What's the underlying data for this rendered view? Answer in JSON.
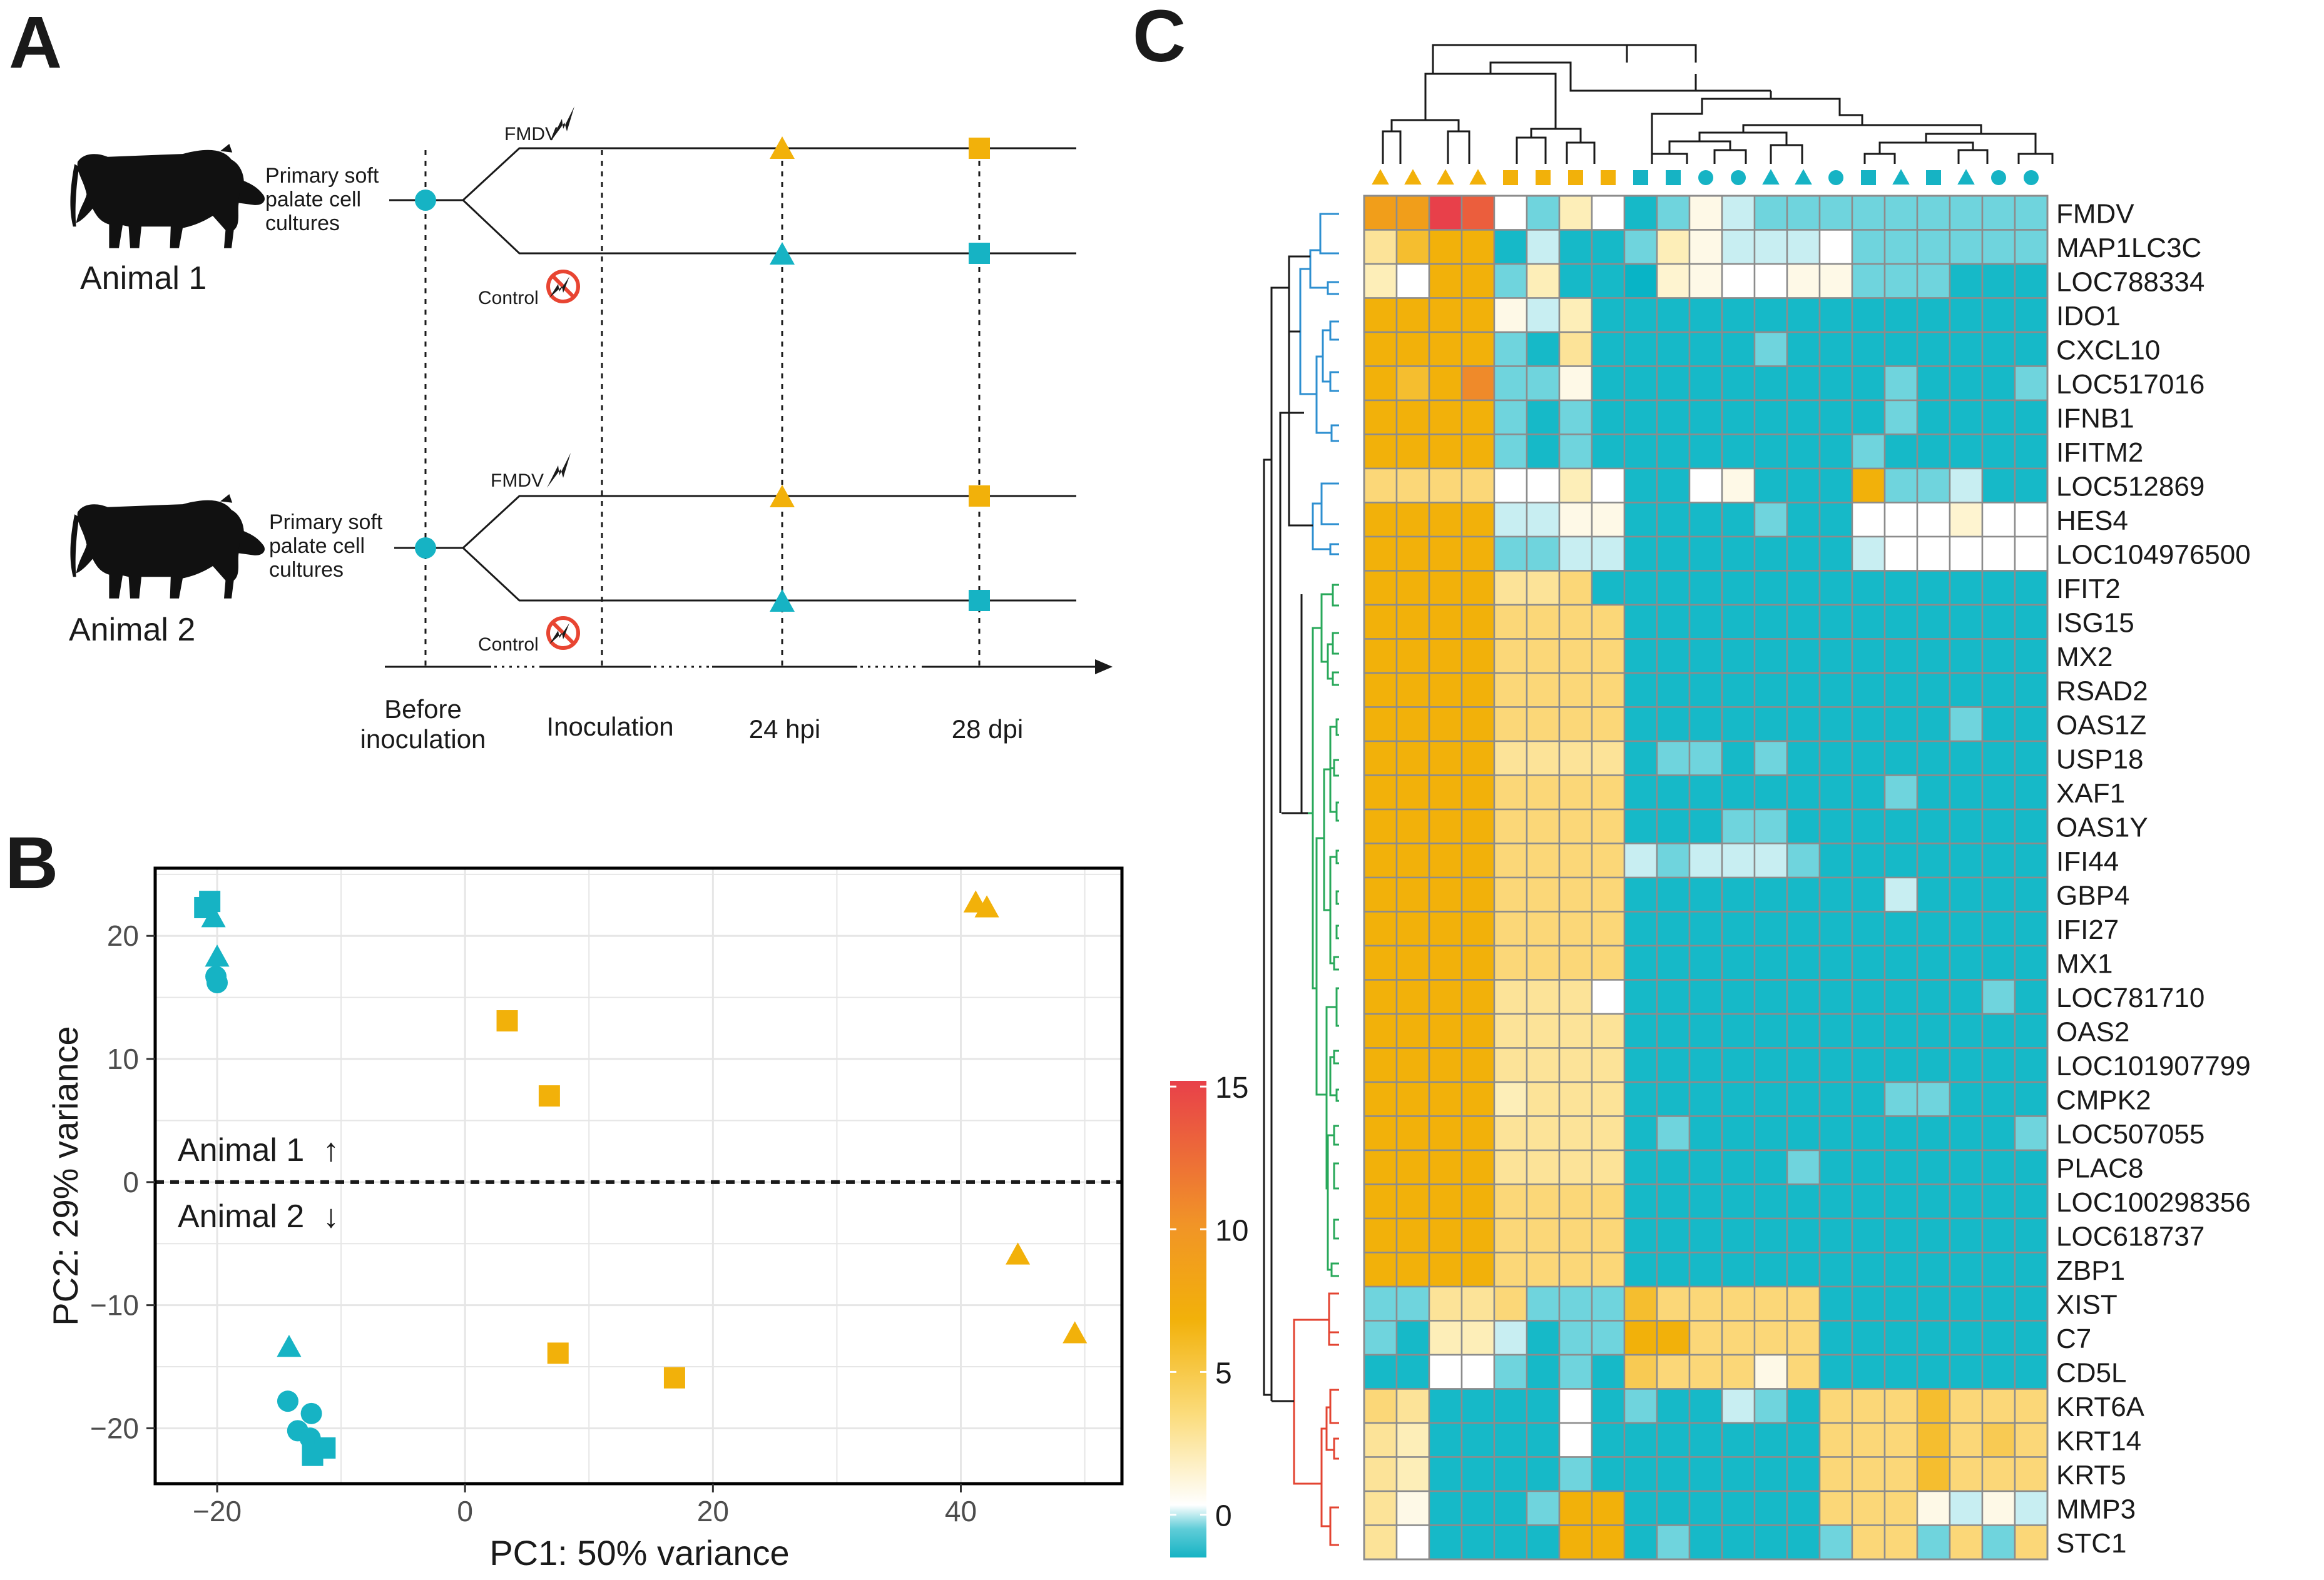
{
  "panels": {
    "a": "A",
    "b": "B",
    "c": "C"
  },
  "colors": {
    "teal": "#16b3c4",
    "orange": "#f2b10a",
    "red": "#e8404a",
    "heat_mid": "#fdf2cf",
    "grid": "#e6e6e6",
    "blue_dend": "#2d8fd0",
    "green_dend": "#28a85a",
    "red_dend": "#e34432"
  },
  "panel_a": {
    "animal1": "Animal 1",
    "animal2": "Animal 2",
    "culture_line1": "Primary soft",
    "culture_line2": "palate cell",
    "culture_line3": "cultures",
    "fmdv": "FMDV",
    "control": "Control",
    "timeline": [
      "Before",
      "inoculation",
      "Inoculation",
      "24 hpi",
      "28 dpi"
    ]
  },
  "panel_b": {
    "chart_data": {
      "type": "scatter",
      "xlabel": "PC1: 50% variance",
      "ylabel": "PC2: 29% variance",
      "xlim": [
        -25,
        53
      ],
      "ylim": [
        -24.5,
        25.5
      ],
      "xticks": [
        -20,
        0,
        20,
        40
      ],
      "yticks": [
        -20,
        -10,
        0,
        10,
        20
      ],
      "xtick_labels": [
        "−20",
        "0",
        "20",
        "40"
      ],
      "ytick_labels": [
        "−20",
        "−10",
        "0",
        "10",
        "20"
      ],
      "divider_y": 0,
      "animal1_label": "Animal 1",
      "animal2_label": "Animal 2",
      "up_arrow": "↑",
      "down_arrow": "↓",
      "points": [
        {
          "x": -21,
          "y": 22.3,
          "shape": "square",
          "group": "control"
        },
        {
          "x": -20.6,
          "y": 22.8,
          "shape": "square",
          "group": "control"
        },
        {
          "x": -20.3,
          "y": 21.5,
          "shape": "triangle",
          "group": "control"
        },
        {
          "x": -20,
          "y": 18.3,
          "shape": "triangle",
          "group": "control"
        },
        {
          "x": -20.1,
          "y": 16.7,
          "shape": "circle",
          "group": "control"
        },
        {
          "x": -20,
          "y": 16.2,
          "shape": "circle",
          "group": "control"
        },
        {
          "x": -14.2,
          "y": -13.4,
          "shape": "triangle",
          "group": "control"
        },
        {
          "x": -14.3,
          "y": -17.8,
          "shape": "circle",
          "group": "control"
        },
        {
          "x": -12.4,
          "y": -18.8,
          "shape": "circle",
          "group": "control"
        },
        {
          "x": -13.5,
          "y": -20.2,
          "shape": "circle",
          "group": "control"
        },
        {
          "x": -12.5,
          "y": -20.8,
          "shape": "circle",
          "group": "control"
        },
        {
          "x": -11.3,
          "y": -21.6,
          "shape": "square",
          "group": "control"
        },
        {
          "x": -12.3,
          "y": -22.2,
          "shape": "square",
          "group": "control"
        },
        {
          "x": 41.2,
          "y": 22.7,
          "shape": "triangle",
          "group": "fmdv"
        },
        {
          "x": 42.1,
          "y": 22.3,
          "shape": "triangle",
          "group": "fmdv"
        },
        {
          "x": 3.4,
          "y": 13.1,
          "shape": "square",
          "group": "fmdv"
        },
        {
          "x": 6.8,
          "y": 7,
          "shape": "square",
          "group": "fmdv"
        },
        {
          "x": 44.6,
          "y": -5.9,
          "shape": "triangle",
          "group": "fmdv"
        },
        {
          "x": 49.2,
          "y": -12.3,
          "shape": "triangle",
          "group": "fmdv"
        },
        {
          "x": 7.5,
          "y": -13.9,
          "shape": "square",
          "group": "fmdv"
        },
        {
          "x": 16.9,
          "y": -15.9,
          "shape": "square",
          "group": "fmdv"
        }
      ]
    }
  },
  "legend": {
    "ticks": [
      15,
      10,
      5,
      0
    ],
    "range": [
      -1.5,
      15.2
    ]
  },
  "panel_c": {
    "chart_data": {
      "type": "heatmap",
      "columns": [
        {
          "shape": "triangle",
          "group": "fmdv"
        },
        {
          "shape": "triangle",
          "group": "fmdv"
        },
        {
          "shape": "triangle",
          "group": "fmdv"
        },
        {
          "shape": "triangle",
          "group": "fmdv"
        },
        {
          "shape": "square",
          "group": "fmdv"
        },
        {
          "shape": "square",
          "group": "fmdv"
        },
        {
          "shape": "square",
          "group": "fmdv"
        },
        {
          "shape": "square",
          "group": "fmdv"
        },
        {
          "shape": "square",
          "group": "control"
        },
        {
          "shape": "square",
          "group": "control"
        },
        {
          "shape": "circle",
          "group": "control"
        },
        {
          "shape": "circle",
          "group": "control"
        },
        {
          "shape": "triangle",
          "group": "control"
        },
        {
          "shape": "triangle",
          "group": "control"
        },
        {
          "shape": "circle",
          "group": "control"
        },
        {
          "shape": "square",
          "group": "control"
        },
        {
          "shape": "triangle",
          "group": "control"
        },
        {
          "shape": "square",
          "group": "control"
        },
        {
          "shape": "triangle",
          "group": "control"
        },
        {
          "shape": "circle",
          "group": "control"
        },
        {
          "shape": "circle",
          "group": "control"
        }
      ],
      "genes": [
        "FMDV",
        "MAP1LC3C",
        "LOC788334",
        "IDO1",
        "CXCL10",
        "LOC517016",
        "IFNB1",
        "IFITM2",
        "LOC512869",
        "HES4",
        "LOC104976500",
        "IFIT2",
        "ISG15",
        "MX2",
        "RSAD2",
        "OAS1Z",
        "USP18",
        "XAF1",
        "OAS1Y",
        "IFI44",
        "GBP4",
        "IFI27",
        "MX1",
        "LOC781710",
        "OAS2",
        "LOC101907799",
        "CMPK2",
        "LOC507055",
        "PLAC8",
        "LOC100298356",
        "LOC618737",
        "ZBP1",
        "XIST",
        "C7",
        "CD5L",
        "KRT6A",
        "KRT14",
        "KRT5",
        "MMP3",
        "STC1"
      ],
      "values": [
        [
          8,
          8,
          14,
          12,
          0.5,
          -0.5,
          2,
          0.5,
          -1,
          -0.5,
          1,
          0,
          -0.5,
          -0.5,
          -0.5,
          -0.5,
          -0.5,
          -0.5,
          -0.5,
          -0.5,
          -0.5
        ],
        [
          3,
          6,
          7,
          7,
          -1,
          0,
          -1,
          -1,
          -0.5,
          2,
          1,
          0,
          0,
          0,
          0.5,
          -0.5,
          -0.5,
          -0.5,
          -0.5,
          -0.5,
          -0.5
        ],
        [
          2,
          0.5,
          7,
          7,
          -0.5,
          2,
          -1,
          -1,
          -1.5,
          1.5,
          1,
          0.5,
          0.5,
          1,
          1,
          -0.5,
          -0.5,
          -0.5,
          -1,
          -1,
          -1
        ],
        [
          7,
          7,
          7,
          7,
          1,
          0,
          2,
          -1,
          -1,
          -1,
          -1,
          -1,
          -1,
          -1,
          -1,
          -1,
          -1,
          -1,
          -1,
          -1,
          -1
        ],
        [
          7,
          7,
          7,
          7,
          -0.5,
          -1,
          3,
          -1,
          -1,
          -1,
          -1,
          -1,
          -0.5,
          -1,
          -1,
          -1,
          -1,
          -1,
          -1,
          -1,
          -1
        ],
        [
          7,
          6,
          7,
          9,
          -0.5,
          -0.5,
          1,
          -1,
          -1,
          -1,
          -1,
          -1,
          -1,
          -1,
          -1,
          -1,
          -0.5,
          -1,
          -1,
          -1,
          -0.5
        ],
        [
          7,
          7,
          7,
          7,
          -0.5,
          -1,
          -0.5,
          -1,
          -1,
          -1,
          -1,
          -1,
          -1,
          -1,
          -1,
          -1,
          -0.5,
          -1,
          -1,
          -1,
          -1
        ],
        [
          7,
          7,
          7,
          7,
          -0.5,
          -1,
          -0.5,
          -1,
          -1,
          -1,
          -1,
          -1,
          -1,
          -1,
          -1,
          -0.5,
          -1,
          -1,
          -1,
          -1,
          -1
        ],
        [
          4,
          4,
          4,
          4,
          0.5,
          0.5,
          2,
          0.5,
          -1,
          -1,
          0.5,
          1,
          -1,
          -1,
          -1,
          7,
          -0.5,
          -0.5,
          0,
          -1,
          -1
        ],
        [
          7,
          7,
          7,
          7,
          0,
          0,
          1,
          1,
          -1,
          -1,
          -1,
          -1,
          -0.5,
          -1,
          -1,
          0.5,
          0.5,
          0.5,
          1.5,
          0.5,
          0.5
        ],
        [
          7,
          7,
          7,
          7,
          -0.5,
          -0.5,
          0,
          0,
          -1,
          -1,
          -1,
          -1,
          -1,
          -1,
          -1,
          0,
          0.5,
          0.5,
          0.5,
          0.5,
          0.5
        ],
        [
          7,
          7,
          7,
          7,
          3,
          3,
          4,
          -1,
          -1,
          -1,
          -1,
          -1,
          -1,
          -1,
          -1,
          -1,
          -1,
          -1,
          -1,
          -1,
          -1
        ],
        [
          7,
          7,
          7,
          7,
          4,
          4,
          4,
          4,
          -1,
          -1,
          -1,
          -1,
          -1,
          -1,
          -1,
          -1,
          -1,
          -1,
          -1,
          -1,
          -1
        ],
        [
          7,
          7,
          7,
          7,
          4,
          4,
          4,
          4,
          -1,
          -1,
          -1,
          -1,
          -1,
          -1,
          -1,
          -1,
          -1,
          -1,
          -1,
          -1,
          -1
        ],
        [
          7,
          7,
          7,
          7,
          4,
          4,
          4,
          4,
          -1,
          -1,
          -1,
          -1,
          -1,
          -1,
          -1,
          -1,
          -1,
          -1,
          -1,
          -1,
          -1
        ],
        [
          7,
          7,
          7,
          7,
          4,
          4,
          4,
          4,
          -1,
          -1,
          -1,
          -1,
          -1,
          -1,
          -1,
          -1,
          -1,
          -1,
          -0.5,
          -1,
          -1
        ],
        [
          7,
          7,
          7,
          7,
          3,
          3,
          3,
          3,
          -1,
          -0.5,
          -0.5,
          -1,
          -0.5,
          -1,
          -1,
          -1,
          -1,
          -1,
          -1,
          -1,
          -1
        ],
        [
          7,
          7,
          7,
          7,
          4,
          4,
          4,
          4,
          -1,
          -1,
          -1,
          -1,
          -1,
          -1,
          -1,
          -1,
          -0.5,
          -1,
          -1,
          -1,
          -1
        ],
        [
          7,
          7,
          7,
          7,
          4,
          4,
          4,
          4,
          -1,
          -1,
          -1,
          -0.5,
          -0.5,
          -1,
          -1,
          -1,
          -1,
          -1,
          -1,
          -1,
          -1
        ],
        [
          7,
          7,
          7,
          7,
          4,
          4,
          4,
          4,
          0,
          -0.5,
          0,
          0,
          0,
          -0.5,
          -1,
          -1,
          -1,
          -1,
          -1,
          -1,
          -1
        ],
        [
          7,
          7,
          7,
          7,
          4,
          4,
          4,
          4,
          -1,
          -1,
          -1,
          -1,
          -1,
          -1,
          -1,
          -1,
          0,
          -1,
          -1,
          -1,
          -1
        ],
        [
          7,
          7,
          7,
          7,
          4,
          4,
          4,
          4,
          -1,
          -1,
          -1,
          -1,
          -1,
          -1,
          -1,
          -1,
          -1,
          -1,
          -1,
          -1,
          -1
        ],
        [
          7,
          7,
          7,
          7,
          4,
          4,
          4,
          4,
          -1,
          -1,
          -1,
          -1,
          -1,
          -1,
          -1,
          -1,
          -1,
          -1,
          -1,
          -1,
          -1
        ],
        [
          7,
          7,
          7,
          7,
          3,
          3,
          3,
          0.5,
          -1,
          -1,
          -1,
          -1,
          -1,
          -1,
          -1,
          -1,
          -1,
          -1,
          -1,
          -0.5,
          -1
        ],
        [
          7,
          7,
          7,
          7,
          3,
          3,
          3,
          3,
          -1,
          -1,
          -1,
          -1,
          -1,
          -1,
          -1,
          -1,
          -1,
          -1,
          -1,
          -1,
          -1
        ],
        [
          7,
          7,
          7,
          7,
          3,
          3,
          3,
          3,
          -1,
          -1,
          -1,
          -1,
          -1,
          -1,
          -1,
          -1,
          -1,
          -1,
          -1,
          -1,
          -1
        ],
        [
          7,
          7,
          7,
          7,
          2,
          3,
          3,
          3,
          -1,
          -1,
          -1,
          -1,
          -1,
          -1,
          -1,
          -1,
          -0.5,
          -0.5,
          -1,
          -1,
          -1
        ],
        [
          7,
          7,
          7,
          7,
          3,
          3,
          3,
          3,
          -1,
          -0.5,
          -1,
          -1,
          -1,
          -1,
          -1,
          -1,
          -1,
          -1,
          -1,
          -1,
          -0.5
        ],
        [
          7,
          7,
          7,
          7,
          3,
          3,
          3,
          3,
          -1,
          -1,
          -1,
          -1,
          -1,
          -0.5,
          -1,
          -1,
          -1,
          -1,
          -1,
          -1,
          -1
        ],
        [
          7,
          7,
          7,
          7,
          4,
          4,
          4,
          4,
          -1,
          -1,
          -1,
          -1,
          -1,
          -1,
          -1,
          -1,
          -1,
          -1,
          -1,
          -1,
          -1
        ],
        [
          7,
          7,
          7,
          7,
          4,
          4,
          4,
          4,
          -1,
          -1,
          -1,
          -1,
          -1,
          -1,
          -1,
          -1,
          -1,
          -1,
          -1,
          -1,
          -1
        ],
        [
          7,
          7,
          7,
          7,
          4,
          4,
          4,
          4,
          -1,
          -1,
          -1,
          -1,
          -1,
          -1,
          -1,
          -1,
          -1,
          -1,
          -1,
          -1,
          -1
        ],
        [
          -0.5,
          -0.5,
          3,
          3,
          4,
          -0.5,
          -0.5,
          -0.5,
          6,
          4,
          4,
          4,
          4,
          4,
          -1,
          -1,
          -1,
          -1,
          -1,
          -1,
          -1
        ],
        [
          -0.5,
          -1,
          2,
          2,
          0,
          -1,
          -0.5,
          -0.5,
          7,
          7,
          4,
          4,
          4,
          4,
          -1,
          -1,
          -1,
          -1,
          -1,
          -1,
          -1
        ],
        [
          -1,
          -1,
          0.5,
          0.5,
          -0.5,
          -1,
          -0.5,
          -1,
          5,
          4,
          4,
          4,
          1,
          4,
          -1,
          -1,
          -1,
          -1,
          -1,
          -1,
          -1
        ],
        [
          4,
          3,
          -1,
          -1,
          -1,
          -1,
          0.5,
          -1,
          -0.5,
          -1,
          -1,
          0,
          -0.5,
          -1,
          4,
          4,
          4,
          6,
          4,
          4,
          4
        ],
        [
          3,
          2,
          -1,
          -1,
          -1,
          -1,
          0.5,
          -1,
          -1,
          -1,
          -1,
          -1,
          -1,
          -1,
          4,
          4,
          4,
          6,
          4,
          5,
          4
        ],
        [
          3,
          2,
          -1,
          -1,
          -1,
          -1,
          -0.5,
          -1,
          -1,
          -1,
          -1,
          -1,
          -1,
          -1,
          4,
          4,
          4,
          6,
          4,
          4,
          4
        ],
        [
          3,
          1,
          -1,
          -1,
          -1,
          -0.5,
          7,
          7,
          -1,
          -1,
          -1,
          -1,
          -1,
          -1,
          4,
          4,
          4,
          1,
          0,
          1,
          0
        ],
        [
          3,
          0.5,
          -1,
          -1,
          -1,
          -1,
          7,
          7,
          -1,
          -0.5,
          -1,
          -1,
          -1,
          -1,
          -0.5,
          4,
          4,
          -0.5,
          4,
          -0.5,
          4
        ]
      ]
    }
  }
}
